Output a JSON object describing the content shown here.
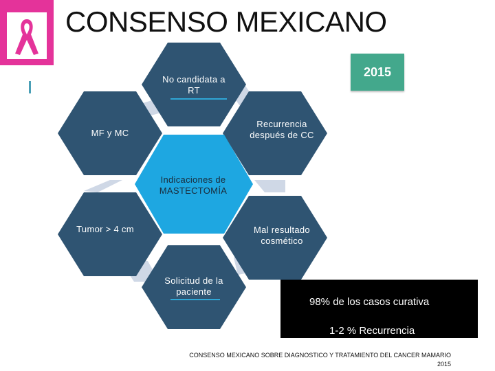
{
  "header": {
    "title": "CONSENSO MEXICANO",
    "year_badge": "2015",
    "logo_icon": "pink-ribbon-icon"
  },
  "diagram": {
    "center": "Indicaciones de MASTECTOMÍA",
    "nodes": [
      "No candidata a RT",
      "Recurrencia después de CC",
      "Mal resultado cosmético",
      "Solicitud de la paciente",
      "Tumor > 4 cm",
      "MF y MC"
    ]
  },
  "stats": {
    "line1": "98% de los casos curativa",
    "line2": "1-2 % Recurrencia"
  },
  "footer": {
    "line1": "CONSENSO MEXICANO SOBRE DIAGNOSTICO Y TRATAMIENTO DEL CANCER MAMARIO",
    "line2": "2015"
  },
  "colors": {
    "hex": "#2f5472",
    "center": "#1ea7e1",
    "connector": "#cfd8e6",
    "accent_pink": "#e4339a",
    "badge": "#43a88c"
  }
}
